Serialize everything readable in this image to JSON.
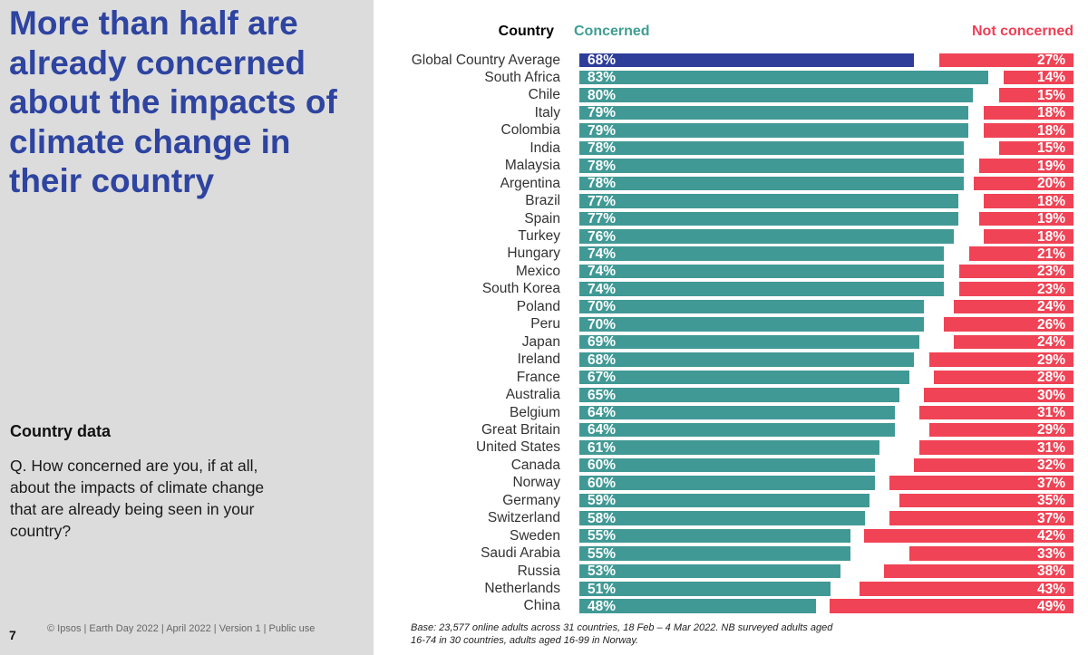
{
  "slide": {
    "title": "More than half are already concerned about the impacts of climate change in their country",
    "section_heading": "Country data",
    "question": "Q. How concerned are you, if at all, about the impacts of climate change that are already being seen in your country?",
    "page_number": "7",
    "footer": "© Ipsos | Earth Day 2022 | April 2022 | Version 1 | Public use",
    "base_note": "Base: 23,577 online adults across 31 countries,  18 Feb – 4 Mar 2022. NB surveyed adults aged 16-74 in 30 countries, adults aged 16-99 in Norway."
  },
  "colors": {
    "title": "#2e44a0",
    "concerned": "#419995",
    "global_average": "#2e3d9a",
    "not_concerned": "#f04355"
  },
  "chart_data": {
    "type": "bar",
    "orientation": "horizontal-diverging",
    "column_headers": {
      "category": "Country",
      "left_series": "Concerned",
      "right_series": "Not concerned"
    },
    "categories": [
      "Global Country Average",
      "South Africa",
      "Chile",
      "Italy",
      "Colombia",
      "India",
      "Malaysia",
      "Argentina",
      "Brazil",
      "Spain",
      "Turkey",
      "Hungary",
      "Mexico",
      "South Korea",
      "Poland",
      "Peru",
      "Japan",
      "Ireland",
      "France",
      "Australia",
      "Belgium",
      "Great Britain",
      "United States",
      "Canada",
      "Norway",
      "Germany",
      "Switzerland",
      "Sweden",
      "Saudi Arabia",
      "Russia",
      "Netherlands",
      "China"
    ],
    "series": [
      {
        "name": "Concerned",
        "unit": "%",
        "values": [
          68,
          83,
          80,
          79,
          79,
          78,
          78,
          78,
          77,
          77,
          76,
          74,
          74,
          74,
          70,
          70,
          69,
          68,
          67,
          65,
          64,
          64,
          61,
          60,
          60,
          59,
          58,
          55,
          55,
          53,
          51,
          48
        ]
      },
      {
        "name": "Not concerned",
        "unit": "%",
        "values": [
          27,
          14,
          15,
          18,
          18,
          15,
          19,
          20,
          18,
          19,
          18,
          21,
          23,
          23,
          24,
          26,
          24,
          29,
          28,
          30,
          31,
          29,
          31,
          32,
          37,
          35,
          37,
          42,
          33,
          38,
          43,
          49
        ]
      }
    ],
    "highlighted_category": "Global Country Average",
    "grid": false,
    "legend": "top (column headers)"
  }
}
